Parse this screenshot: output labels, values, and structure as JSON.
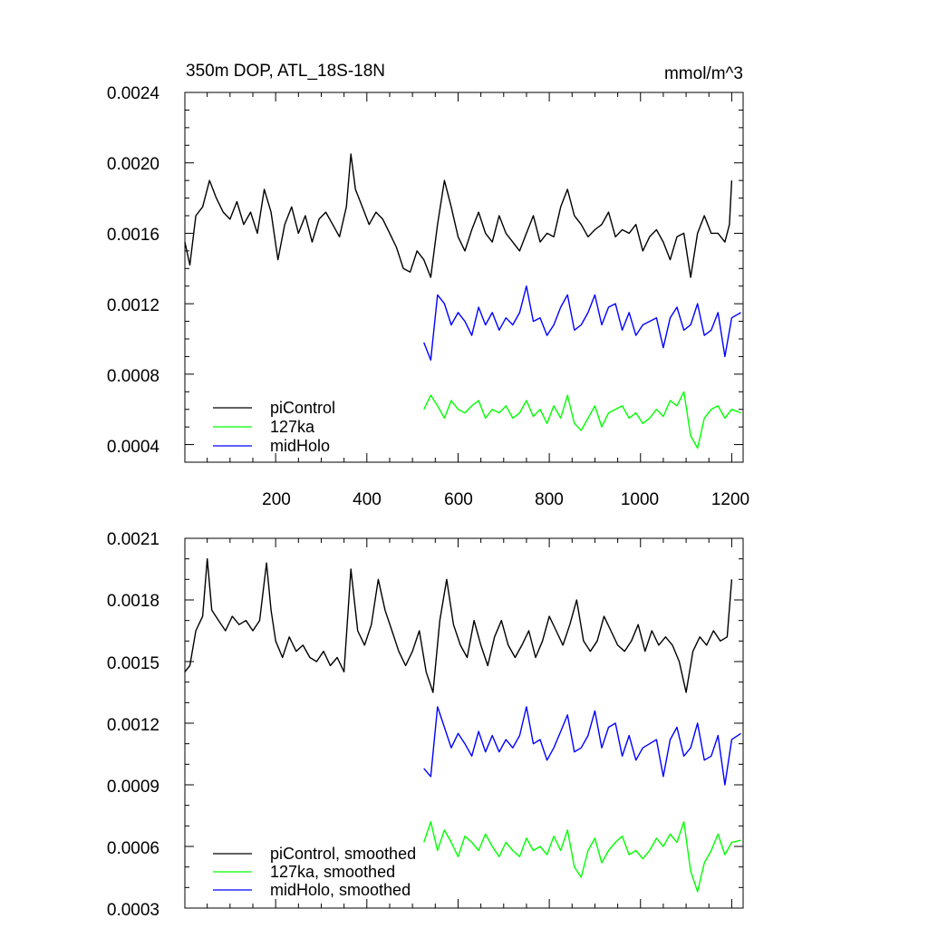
{
  "chart_data": [
    {
      "type": "line",
      "title": "350m DOP, ATL_18S-18N",
      "units": "mmol/m^3",
      "xlim": [
        1,
        1225
      ],
      "ylim": [
        0.0003,
        0.0024
      ],
      "x_tick_labels": [
        "200",
        "400",
        "600",
        "800",
        "1000",
        "1200"
      ],
      "y_tick_labels": [
        "0.0024",
        "0.0020",
        "0.0016",
        "0.0012",
        "0.0008",
        "0.0004"
      ],
      "grid": false,
      "legend_position": "bottom-left",
      "series": [
        {
          "name": "piControl",
          "color": "#000000",
          "x": [
            1,
            12,
            25,
            40,
            55,
            70,
            85,
            100,
            115,
            130,
            145,
            160,
            175,
            190,
            205,
            220,
            235,
            250,
            265,
            280,
            295,
            310,
            325,
            340,
            355,
            365,
            375,
            390,
            405,
            420,
            435,
            450,
            465,
            480,
            495,
            510,
            525,
            540,
            555,
            570,
            585,
            600,
            615,
            630,
            645,
            660,
            675,
            690,
            705,
            720,
            735,
            750,
            765,
            780,
            795,
            810,
            825,
            840,
            855,
            870,
            885,
            900,
            915,
            930,
            945,
            960,
            975,
            990,
            1005,
            1020,
            1035,
            1050,
            1065,
            1080,
            1095,
            1110,
            1125,
            1140,
            1155,
            1170,
            1185,
            1195,
            1200
          ],
          "values": [
            0.00155,
            0.00142,
            0.0017,
            0.00175,
            0.0019,
            0.0018,
            0.00172,
            0.00168,
            0.00178,
            0.00165,
            0.00172,
            0.0016,
            0.00185,
            0.00172,
            0.00145,
            0.00165,
            0.00175,
            0.0016,
            0.0017,
            0.00155,
            0.00168,
            0.00172,
            0.00165,
            0.00158,
            0.00175,
            0.00205,
            0.00185,
            0.00175,
            0.00165,
            0.00172,
            0.00168,
            0.0016,
            0.00152,
            0.0014,
            0.00138,
            0.0015,
            0.00145,
            0.00135,
            0.00165,
            0.0019,
            0.00175,
            0.00158,
            0.0015,
            0.00162,
            0.00172,
            0.0016,
            0.00155,
            0.0017,
            0.0016,
            0.00155,
            0.0015,
            0.0016,
            0.0017,
            0.00155,
            0.0016,
            0.00158,
            0.00175,
            0.00185,
            0.0017,
            0.00165,
            0.00158,
            0.00162,
            0.00165,
            0.00172,
            0.00158,
            0.00162,
            0.0016,
            0.00165,
            0.0015,
            0.00158,
            0.00162,
            0.00155,
            0.00145,
            0.00158,
            0.0016,
            0.00135,
            0.0016,
            0.0017,
            0.0016,
            0.0016,
            0.00155,
            0.00165,
            0.0019
          ]
        },
        {
          "name": "127ka",
          "color": "#00ff00",
          "x": [
            525,
            540,
            555,
            570,
            585,
            600,
            615,
            630,
            645,
            660,
            675,
            690,
            705,
            720,
            735,
            750,
            765,
            780,
            795,
            810,
            825,
            840,
            855,
            870,
            885,
            900,
            915,
            930,
            945,
            960,
            975,
            990,
            1005,
            1020,
            1035,
            1050,
            1065,
            1080,
            1095,
            1110,
            1125,
            1140,
            1155,
            1170,
            1185,
            1200,
            1220
          ],
          "values": [
            0.0006,
            0.00068,
            0.00062,
            0.00055,
            0.00065,
            0.0006,
            0.00058,
            0.00062,
            0.00065,
            0.00055,
            0.0006,
            0.00058,
            0.00062,
            0.00055,
            0.00058,
            0.00065,
            0.00056,
            0.0006,
            0.00052,
            0.00062,
            0.00055,
            0.00068,
            0.00052,
            0.00048,
            0.00055,
            0.00062,
            0.0005,
            0.00058,
            0.0006,
            0.00062,
            0.00055,
            0.00058,
            0.00052,
            0.00055,
            0.0006,
            0.00056,
            0.00065,
            0.00062,
            0.0007,
            0.00045,
            0.00038,
            0.00055,
            0.0006,
            0.00062,
            0.00055,
            0.0006,
            0.00058
          ]
        },
        {
          "name": "midHolo",
          "color": "#0000ff",
          "x": [
            525,
            540,
            555,
            570,
            585,
            600,
            615,
            630,
            645,
            660,
            675,
            690,
            705,
            720,
            735,
            750,
            765,
            780,
            795,
            810,
            825,
            840,
            855,
            870,
            885,
            900,
            915,
            930,
            945,
            960,
            975,
            990,
            1005,
            1020,
            1035,
            1050,
            1065,
            1080,
            1095,
            1110,
            1125,
            1140,
            1155,
            1170,
            1185,
            1200,
            1220
          ],
          "values": [
            0.00098,
            0.00088,
            0.00125,
            0.0012,
            0.00108,
            0.00115,
            0.0011,
            0.00102,
            0.00118,
            0.00108,
            0.00115,
            0.00105,
            0.00112,
            0.00108,
            0.00115,
            0.0013,
            0.0011,
            0.00112,
            0.00102,
            0.00108,
            0.00118,
            0.00125,
            0.00105,
            0.00108,
            0.00115,
            0.00125,
            0.00108,
            0.00118,
            0.0012,
            0.00105,
            0.00115,
            0.00102,
            0.00108,
            0.0011,
            0.00112,
            0.00095,
            0.00112,
            0.00118,
            0.00105,
            0.00108,
            0.0012,
            0.00102,
            0.00105,
            0.00115,
            0.0009,
            0.00112,
            0.00115
          ]
        }
      ]
    },
    {
      "type": "line",
      "title": "",
      "xlim": [
        1,
        1225
      ],
      "ylim": [
        0.0003,
        0.0021
      ],
      "y_tick_labels": [
        "0.0021",
        "0.0018",
        "0.0015",
        "0.0012",
        "0.0009",
        "0.0006",
        "0.0003"
      ],
      "grid": false,
      "legend_position": "bottom-left",
      "series": [
        {
          "name": "piControl, smoothed",
          "color": "#000000",
          "x": [
            1,
            12,
            25,
            40,
            50,
            60,
            75,
            90,
            105,
            120,
            135,
            150,
            165,
            180,
            190,
            200,
            215,
            230,
            245,
            260,
            275,
            290,
            305,
            320,
            335,
            350,
            365,
            380,
            395,
            410,
            425,
            440,
            455,
            470,
            485,
            500,
            515,
            530,
            545,
            560,
            575,
            590,
            605,
            620,
            635,
            650,
            665,
            680,
            695,
            710,
            725,
            740,
            755,
            770,
            785,
            800,
            815,
            830,
            845,
            860,
            875,
            890,
            905,
            920,
            935,
            950,
            965,
            980,
            995,
            1010,
            1025,
            1040,
            1055,
            1070,
            1085,
            1100,
            1115,
            1130,
            1145,
            1160,
            1175,
            1190,
            1200
          ],
          "values": [
            0.00145,
            0.00148,
            0.00165,
            0.00172,
            0.002,
            0.00175,
            0.0017,
            0.00165,
            0.00172,
            0.00168,
            0.0017,
            0.00165,
            0.0017,
            0.00198,
            0.00175,
            0.0016,
            0.00152,
            0.00162,
            0.00155,
            0.00158,
            0.00152,
            0.0015,
            0.00155,
            0.00148,
            0.00152,
            0.00145,
            0.00195,
            0.00165,
            0.00158,
            0.00168,
            0.0019,
            0.00175,
            0.00165,
            0.00155,
            0.00148,
            0.00155,
            0.00165,
            0.00145,
            0.00135,
            0.0017,
            0.0019,
            0.00168,
            0.00158,
            0.00152,
            0.0017,
            0.00158,
            0.00148,
            0.00162,
            0.0017,
            0.00158,
            0.00152,
            0.00158,
            0.00165,
            0.00152,
            0.0016,
            0.00172,
            0.00165,
            0.00158,
            0.00168,
            0.0018,
            0.0016,
            0.00155,
            0.0016,
            0.00172,
            0.00165,
            0.00158,
            0.00155,
            0.0016,
            0.00168,
            0.00155,
            0.00165,
            0.00158,
            0.00162,
            0.00158,
            0.0015,
            0.00135,
            0.00155,
            0.00162,
            0.00158,
            0.00165,
            0.0016,
            0.00162,
            0.0019
          ]
        },
        {
          "name": "127ka, smoothed",
          "color": "#00ff00",
          "x": [
            525,
            540,
            555,
            570,
            585,
            600,
            615,
            630,
            645,
            660,
            675,
            690,
            705,
            720,
            735,
            750,
            765,
            780,
            795,
            810,
            825,
            840,
            855,
            870,
            885,
            900,
            915,
            930,
            945,
            960,
            975,
            990,
            1005,
            1020,
            1035,
            1050,
            1065,
            1080,
            1095,
            1110,
            1125,
            1140,
            1155,
            1170,
            1185,
            1200,
            1220
          ],
          "values": [
            0.00062,
            0.00072,
            0.00058,
            0.00068,
            0.00062,
            0.00055,
            0.00065,
            0.00062,
            0.00058,
            0.00066,
            0.0006,
            0.00055,
            0.00062,
            0.00058,
            0.00055,
            0.00064,
            0.00058,
            0.0006,
            0.00056,
            0.00065,
            0.00058,
            0.00068,
            0.0005,
            0.00045,
            0.00058,
            0.00064,
            0.00052,
            0.00058,
            0.00062,
            0.00065,
            0.00056,
            0.00058,
            0.00054,
            0.00058,
            0.00064,
            0.0006,
            0.00066,
            0.00062,
            0.00072,
            0.00048,
            0.00038,
            0.00052,
            0.00058,
            0.00066,
            0.00056,
            0.00062,
            0.00063
          ]
        },
        {
          "name": "midHolo, smoothed",
          "color": "#0000ff",
          "x": [
            525,
            540,
            555,
            570,
            585,
            600,
            615,
            630,
            645,
            660,
            675,
            690,
            705,
            720,
            735,
            750,
            765,
            780,
            795,
            810,
            825,
            840,
            855,
            870,
            885,
            900,
            915,
            930,
            945,
            960,
            975,
            990,
            1005,
            1020,
            1035,
            1050,
            1065,
            1080,
            1095,
            1110,
            1125,
            1140,
            1155,
            1170,
            1185,
            1200,
            1220
          ],
          "values": [
            0.00098,
            0.00094,
            0.00128,
            0.00118,
            0.00108,
            0.00115,
            0.0011,
            0.00104,
            0.00116,
            0.00106,
            0.00114,
            0.00106,
            0.00112,
            0.00108,
            0.00114,
            0.00128,
            0.0011,
            0.00112,
            0.00102,
            0.00108,
            0.00116,
            0.00124,
            0.00106,
            0.00108,
            0.00114,
            0.00126,
            0.00108,
            0.00118,
            0.0012,
            0.00104,
            0.00114,
            0.00102,
            0.00108,
            0.0011,
            0.00112,
            0.00094,
            0.00112,
            0.00118,
            0.00104,
            0.00108,
            0.0012,
            0.00102,
            0.00104,
            0.00114,
            0.0009,
            0.00112,
            0.00115
          ]
        }
      ]
    }
  ]
}
